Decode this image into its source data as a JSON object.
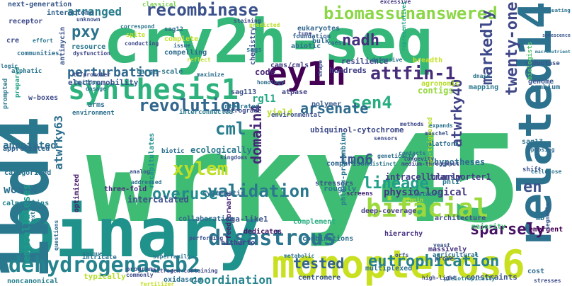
{
  "words": [
    {
      "text": "wrky45",
      "color": "#3fbc73"
    },
    {
      "text": "cry2h-seq",
      "color": "#35b779"
    },
    {
      "text": "binary",
      "color": "#20928c"
    },
    {
      "text": "1bd4",
      "color": "#2a788e"
    },
    {
      "text": "related14",
      "color": "#2c728e"
    },
    {
      "text": "monopteros6",
      "color": "#c8e020"
    },
    {
      "text": "dehydrogenaseb2",
      "color": "#25838e"
    },
    {
      "text": "ey1h",
      "color": "#440154"
    },
    {
      "text": "synthesis1",
      "color": "#2db27d"
    },
    {
      "text": "bifacial",
      "color": "#9bd93c"
    },
    {
      "text": "disastrous",
      "color": "#2b758e"
    },
    {
      "text": "attfin-1",
      "color": "#472c7a"
    },
    {
      "text": "recombinase",
      "color": "#3b518b"
    },
    {
      "text": "biomassunanswered",
      "color": "#8bd646"
    },
    {
      "text": "sen4",
      "color": "#27ad81"
    },
    {
      "text": "arsenate",
      "color": "#2f6c8e"
    },
    {
      "text": "revolution",
      "color": "#31668e"
    },
    {
      "text": "cml",
      "color": "#287d8e"
    },
    {
      "text": "nadh",
      "color": "#46307e"
    },
    {
      "text": "tmo6",
      "color": "#38588c"
    },
    {
      "text": "markedly",
      "color": "#3e4989"
    },
    {
      "text": "twenty-one",
      "color": "#3f4788"
    },
    {
      "text": "atwrky40",
      "color": "#414487"
    },
    {
      "text": "domain4",
      "color": "#482878"
    },
    {
      "text": "xylem",
      "color": "#bddf26"
    },
    {
      "text": "validation",
      "color": "#2a788e"
    },
    {
      "text": "overuse",
      "color": "#23898e"
    },
    {
      "text": "lineage",
      "color": "#1f9e89"
    },
    {
      "text": "sparsely",
      "color": "#471164"
    },
    {
      "text": "eutrophication",
      "color": "#26828e"
    },
    {
      "text": "tested",
      "color": "#33638d"
    },
    {
      "text": "coordination",
      "color": "#25848e"
    },
    {
      "text": "en",
      "color": "#3b528b"
    },
    {
      "text": "pxy",
      "color": "#2c728e"
    },
    {
      "text": "perturbation",
      "color": "#31688e"
    },
    {
      "text": "arranged",
      "color": "#287c8e"
    },
    {
      "text": "wox14",
      "color": "#2d718e"
    },
    {
      "text": "atwrky63",
      "color": "#2e6f8e"
    },
    {
      "text": "annotated",
      "color": "#2d708e"
    },
    {
      "text": "physio-logical",
      "color": "#443a83"
    },
    {
      "text": "hemicelluloses",
      "color": "#1f9a8a"
    },
    {
      "text": "intercalated",
      "color": "#3d4e8a"
    },
    {
      "text": "electromobility",
      "color": "#3a538b"
    },
    {
      "text": "sag113",
      "color": "#3c4f8a"
    },
    {
      "text": "cams/cmls",
      "color": "#433e85"
    },
    {
      "text": "large-scale",
      "color": "#2b748e"
    },
    {
      "text": "resilience",
      "color": "#3f4889"
    },
    {
      "text": "hundreds",
      "color": "#424086"
    },
    {
      "text": "ubiquinol-cytochrome",
      "color": "#3e4a89"
    },
    {
      "text": "intracellularly",
      "color": "#424186"
    },
    {
      "text": "deep-coverage",
      "color": "#443b84"
    },
    {
      "text": "ecologically",
      "color": "#2a778e"
    },
    {
      "text": "hypotheses",
      "color": "#2e6e8e"
    },
    {
      "text": "transporter1",
      "color": "#424086"
    },
    {
      "text": "polymer",
      "color": "#38598c"
    },
    {
      "text": "comparison",
      "color": "#31678e"
    },
    {
      "text": "stressors",
      "color": "#3b528b"
    },
    {
      "text": "roughly",
      "color": "#2a788e"
    },
    {
      "text": "network",
      "color": "#2c728e"
    },
    {
      "text": "majority",
      "color": "#3fbc73"
    },
    {
      "text": "massively",
      "color": "#46337f"
    },
    {
      "text": "architecture",
      "color": "#3d4e8a"
    },
    {
      "text": "complement",
      "color": "#28ae80"
    },
    {
      "text": "combinations",
      "color": "#2e6f8e"
    },
    {
      "text": "dedicates",
      "color": "#471365"
    },
    {
      "text": "collaboration",
      "color": "#31688e"
    },
    {
      "text": "hierarchy",
      "color": "#46327e"
    },
    {
      "text": "multiplexed",
      "color": "#2d708e"
    },
    {
      "text": "constraints",
      "color": "#3b528b"
    },
    {
      "text": "centromere",
      "color": "#39568c"
    },
    {
      "text": "feedforward",
      "color": "#482576"
    },
    {
      "text": "hitherto",
      "color": "#424086"
    },
    {
      "text": "three-fold",
      "color": "#472d7b"
    },
    {
      "text": "optimized",
      "color": "#48186a"
    },
    {
      "text": "calmodulins",
      "color": "#25848e"
    },
    {
      "text": "categorized",
      "color": "#2c738e"
    },
    {
      "text": "appreciated",
      "color": "#31668e"
    },
    {
      "text": "aaa",
      "color": "#2a778e"
    },
    {
      "text": "rga-like1",
      "color": "#3b528b"
    },
    {
      "text": "typically",
      "color": "#b5de2b"
    },
    {
      "text": "noncanonical",
      "color": "#277f8e"
    },
    {
      "text": "oxidase1a",
      "color": "#2b748e"
    },
    {
      "text": "recapitulates",
      "color": "#21918c"
    },
    {
      "text": "platform",
      "color": "#2e6d8e"
    },
    {
      "text": "genome",
      "color": "#39568c"
    },
    {
      "text": "cambium",
      "color": "#2e6f8e"
    },
    {
      "text": "reductase",
      "color": "#39558c"
    },
    {
      "text": "emergent",
      "color": "#440154"
    },
    {
      "text": "segments",
      "color": "#38598c"
    },
    {
      "text": "biotic",
      "color": "#2d718e"
    },
    {
      "text": "kingdoms",
      "color": "#3b528b"
    },
    {
      "text": "systematic",
      "color": "#31688e"
    },
    {
      "text": "integrated",
      "color": "#2b758e"
    },
    {
      "text": "retrograde",
      "color": "#3e4989"
    },
    {
      "text": "contigs",
      "color": "#95d840"
    },
    {
      "text": "agronomic",
      "color": "#b8de29"
    },
    {
      "text": "mapping",
      "color": "#2a788e"
    },
    {
      "text": "biologists",
      "color": "#52c569"
    },
    {
      "text": "code",
      "color": "#482374"
    },
    {
      "text": "homology",
      "color": "#2f6c8e"
    },
    {
      "text": "rgl1",
      "color": "#22a785"
    },
    {
      "text": "atpase",
      "color": "#424186"
    },
    {
      "text": "yield",
      "color": "#b8de29"
    },
    {
      "text": "environmental",
      "color": "#3b528b"
    },
    {
      "text": "interconnected",
      "color": "#2a788e"
    },
    {
      "text": "environment",
      "color": "#2c728e"
    },
    {
      "text": "arms",
      "color": "#2e6e8e"
    },
    {
      "text": "w-boxes",
      "color": "#3e4c8a"
    },
    {
      "text": "prompted",
      "color": "#2a788e"
    },
    {
      "text": "prepared",
      "color": "#20a386"
    },
    {
      "text": "alphatic",
      "color": "#2b758e"
    },
    {
      "text": "communities",
      "color": "#2e6e8e"
    },
    {
      "text": "cre",
      "color": "#3e4989"
    },
    {
      "text": "receptor",
      "color": "#3e4989"
    },
    {
      "text": "next-generation",
      "color": "#38588c"
    },
    {
      "text": "interactome",
      "color": "#33638d"
    },
    {
      "text": "classical",
      "color": "#7ad151"
    },
    {
      "text": "antimycin",
      "color": "#3b528b"
    },
    {
      "text": "correspond",
      "color": "#2b758e"
    },
    {
      "text": "resource",
      "color": "#2a788e"
    },
    {
      "text": "dysfunction",
      "color": "#3f4788"
    },
    {
      "text": "conducting",
      "color": "#3e4a89"
    },
    {
      "text": "spite",
      "color": "#bddf26"
    },
    {
      "text": "sag12",
      "color": "#2f6b8e"
    },
    {
      "text": "complete",
      "color": "#c2df23"
    },
    {
      "text": "compelling",
      "color": "#2f6c8e"
    },
    {
      "text": "issue",
      "color": "#31668e"
    },
    {
      "text": "chemistry",
      "color": "#3b528b"
    },
    {
      "text": "sags",
      "color": "#2c728e"
    },
    {
      "text": "eukaryotes",
      "color": "#31678e"
    },
    {
      "text": "foundation",
      "color": "#34608d"
    },
    {
      "text": "bulk",
      "color": "#2f6b8e"
    },
    {
      "text": "abiotic",
      "color": "#2e6d8e"
    },
    {
      "text": "defensive",
      "color": "#2e6e8e"
    },
    {
      "text": "breadth",
      "color": "#c5e021"
    },
    {
      "text": "staining",
      "color": "#3e4989"
    },
    {
      "text": "excessive",
      "color": "#443b84"
    },
    {
      "text": "attenuating",
      "color": "#2d718e"
    },
    {
      "text": "senescence",
      "color": "#39568c"
    },
    {
      "text": "macronutrient",
      "color": "#2b758e"
    },
    {
      "text": "dnase",
      "color": "#2c728e"
    },
    {
      "text": "representatives",
      "color": "#20a386"
    },
    {
      "text": "predicted",
      "color": "#bddf26"
    },
    {
      "text": "tune",
      "color": "#3e4989"
    },
    {
      "text": "cues",
      "color": "#31668e"
    },
    {
      "text": "shape",
      "color": "#3e4a89"
    },
    {
      "text": "cellulose",
      "color": "#2c728e"
    },
    {
      "text": "shift",
      "color": "#3b528b"
    },
    {
      "text": "sag13",
      "color": "#2c728e"
    },
    {
      "text": "phloem-procambium",
      "color": "#2a788e"
    },
    {
      "text": "age-triggered",
      "color": "#b5de2b"
    },
    {
      "text": "opposing",
      "color": "#2f6b8e"
    },
    {
      "text": "expands",
      "color": "#2c728e"
    },
    {
      "text": "sensors",
      "color": "#3e4a89"
    },
    {
      "text": "distinct",
      "color": "#2a788e"
    },
    {
      "text": "contacts",
      "color": "#2c728e"
    },
    {
      "text": "muschel",
      "color": "#3b528b"
    },
    {
      "text": "methods",
      "color": "#3e4989"
    },
    {
      "text": "genetically",
      "color": "#2e6e8e"
    },
    {
      "text": "longevity",
      "color": "#3b528b"
    },
    {
      "text": "medium-throughput",
      "color": "#3e4989"
    },
    {
      "text": "screens",
      "color": "#472d7b"
    },
    {
      "text": "lignin",
      "color": "#b5de2b"
    },
    {
      "text": "yeast",
      "color": "#3b528b"
    },
    {
      "text": "mb",
      "color": "#2c728e"
    },
    {
      "text": "phl1",
      "color": "#2a788e"
    },
    {
      "text": "agricultural",
      "color": "#2e6e8e"
    },
    {
      "text": "prove",
      "color": "#3b528b"
    },
    {
      "text": "pleiotropically",
      "color": "#2a788e"
    },
    {
      "text": "stresses",
      "color": "#3e4a89"
    },
    {
      "text": "cost",
      "color": "#2f6b8e"
    },
    {
      "text": "orfs",
      "color": "#3b528b"
    },
    {
      "text": "high-light",
      "color": "#3e4989"
    },
    {
      "text": "intricate",
      "color": "#2c728e"
    },
    {
      "text": "programs",
      "color": "#3b528b"
    },
    {
      "text": "commonly",
      "color": "#3e4a89"
    },
    {
      "text": "superfamily",
      "color": "#2c728e"
    },
    {
      "text": "unique",
      "color": "#2a788e"
    },
    {
      "text": "nitrogen-containing",
      "color": "#3e4989"
    },
    {
      "text": "fertilizer",
      "color": "#c2df23"
    },
    {
      "text": "performing",
      "color": "#3b528b"
    },
    {
      "text": "metabolic",
      "color": "#2c728e"
    },
    {
      "text": "questions",
      "color": "#2f6b8e"
    },
    {
      "text": "analog",
      "color": "#3b528b"
    },
    {
      "text": "addressed",
      "color": "#2c728e"
    },
    {
      "text": "extend",
      "color": "#2a788e"
    },
    {
      "text": "tf/promoter",
      "color": "#3e4989"
    },
    {
      "text": "buildup",
      "color": "#2c728e"
    },
    {
      "text": "dosage",
      "color": "#2a788e"
    },
    {
      "text": "maximize",
      "color": "#2e6e8e"
    },
    {
      "text": "reflect",
      "color": "#bddf26"
    },
    {
      "text": "unknown",
      "color": "#3b528b"
    },
    {
      "text": "logic",
      "color": "#2c728e"
    },
    {
      "text": "effort",
      "color": "#2a788e"
    }
  ]
}
